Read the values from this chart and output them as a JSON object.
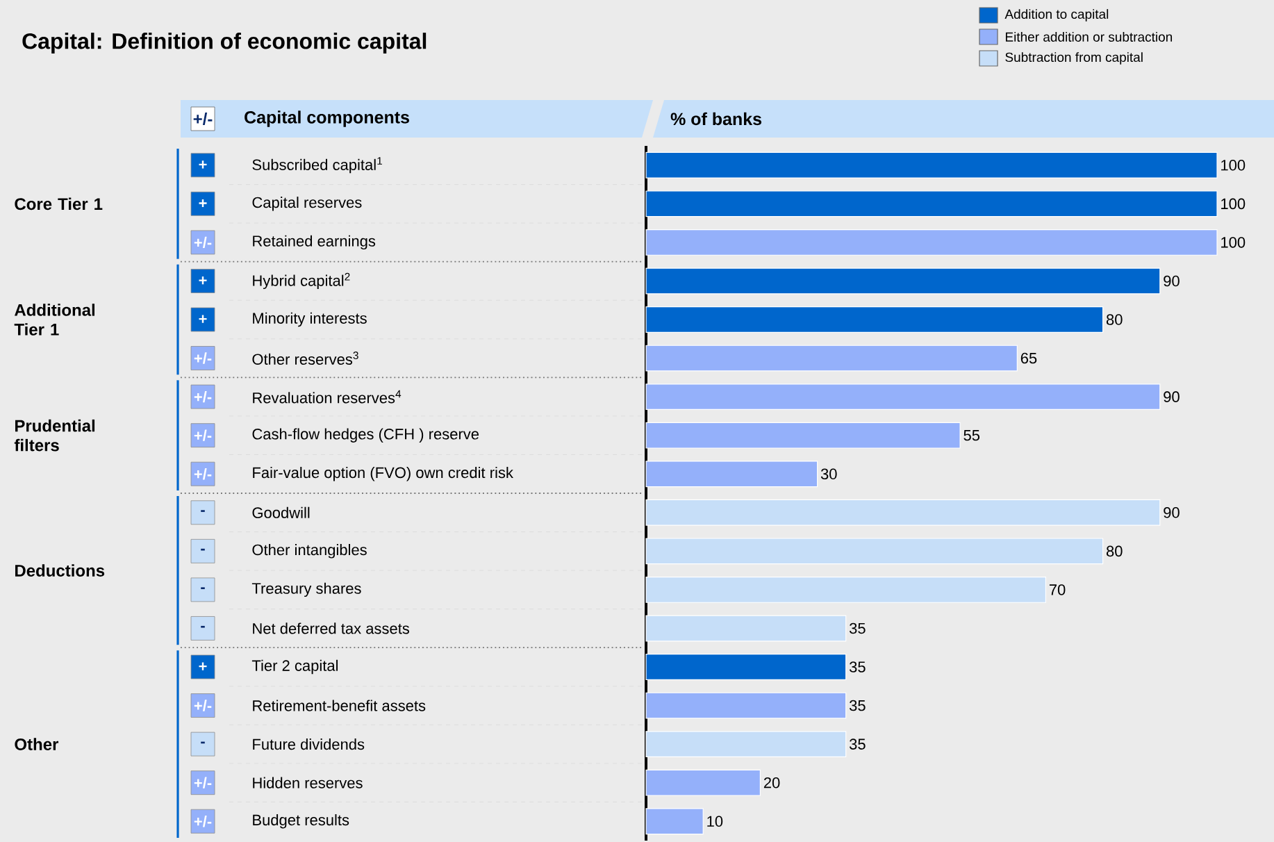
{
  "chart_data": {
    "type": "bar",
    "orientation": "horizontal",
    "title": "Capital: Definition of economic capital",
    "categories": [
      "Subscribed capital$^{1}$",
      "Capital reserves",
      "Retained earnings",
      "Hybrid capital$^{2}$",
      "Minority interests",
      "Other reserves$^{3}$",
      "Revaluation reserves$^{4}$",
      "Cash-flow hedges (CFH ) reserve",
      "Fair-value option (FVO) own credit risk",
      "Goodwill",
      "Other intangibles",
      "Treasury shares",
      "Net deferred tax assets",
      "Tier 2 capital",
      "Retirement-benefit assets",
      "Future dividends",
      "Hidden reserves",
      "Budget results"
    ],
    "series": [
      {
        "name": "Addition to capital",
        "color": "#0066cc",
        "values": [
          100,
          100,
          null,
          90,
          80,
          null,
          null,
          null,
          null,
          null,
          null,
          null,
          null,
          35,
          null,
          null,
          null,
          null
        ]
      },
      {
        "name": "Either addition or subtraction",
        "color": "#94b0fa",
        "values": [
          null,
          null,
          100,
          null,
          null,
          65,
          90,
          55,
          30,
          null,
          null,
          null,
          null,
          null,
          35,
          null,
          20,
          10
        ]
      },
      {
        "name": "Subtraction from capital",
        "color": "#c6def8",
        "values": [
          null,
          null,
          null,
          null,
          null,
          null,
          null,
          null,
          null,
          90,
          80,
          70,
          35,
          null,
          null,
          35,
          null,
          null
        ]
      }
    ],
    "xlim": [
      0,
      100
    ],
    "data_labels": true,
    "legend": "top right",
    "annotations": [
      "+/-",
      "Capital components",
      "% of banks",
      "Core Tier 1",
      "Additional Tier 1",
      "Prudential filters",
      "Deductions",
      "Other",
      "+",
      "+",
      "+/-",
      "+",
      "+",
      "+/-",
      "+/-",
      "+/-",
      "+/-",
      "-",
      "-",
      "-",
      "-",
      "+",
      "+/-",
      "-",
      "+/-",
      "+/-"
    ]
  }
}
